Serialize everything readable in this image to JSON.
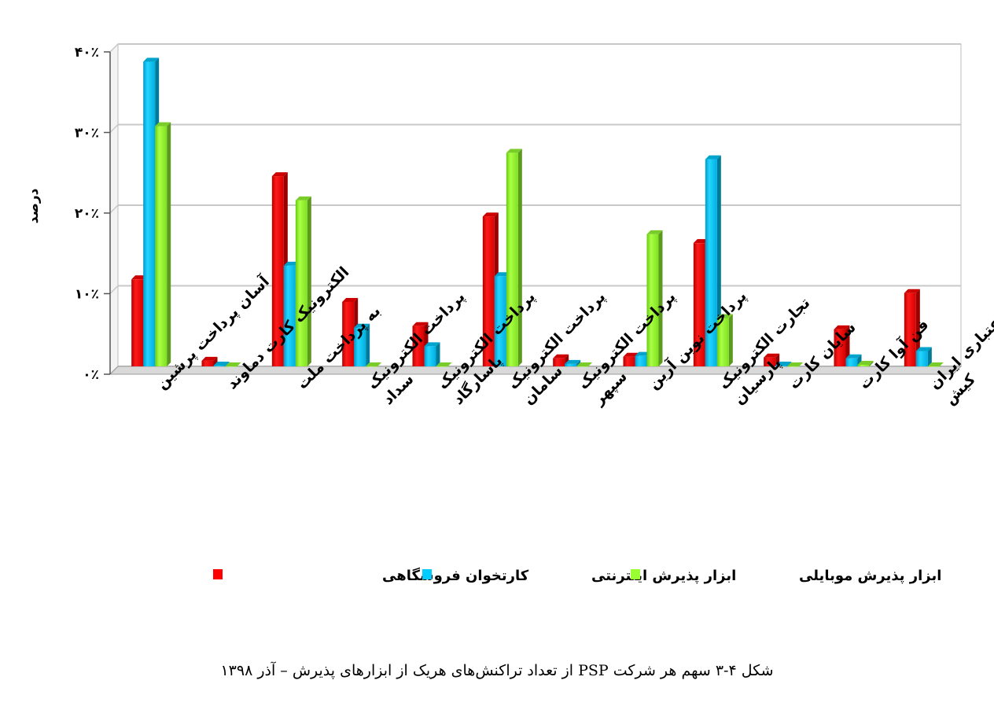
{
  "caption": "شکل ۴-۳ سهم هر شرکت PSP از تعداد تراکنش‌های هریک از ابزارهای پذیرش – آذر ۱۳۹۸",
  "chart_data": {
    "type": "bar",
    "ylabel": "درصد",
    "ylim": [
      0,
      40
    ],
    "grid": true,
    "legend_placement": "bottom",
    "y_ticks": [
      {
        "value": 0,
        "label": "۰٪"
      },
      {
        "value": 10,
        "label": "۱۰٪"
      },
      {
        "value": 20,
        "label": "۲۰٪"
      },
      {
        "value": 30,
        "label": "۳۰٪"
      },
      {
        "value": 40,
        "label": "۴۰٪"
      }
    ],
    "categories": [
      [
        "آسان پرداخت پرشین"
      ],
      [
        "الکترونیک کارت دماوند"
      ],
      [
        "به پرداخت ملت"
      ],
      [
        "پرداخت الکترونیک",
        "سداد"
      ],
      [
        "پرداخت الکترونیک",
        "پاسارگاد"
      ],
      [
        "پرداخت الکترونیک",
        "سامان"
      ],
      [
        "پرداخت الکترونیک",
        "سپهر"
      ],
      [
        "پرداخت نوین آرین"
      ],
      [
        "تجارت الکترونیک",
        "پارسیان"
      ],
      [
        "سایان کارت"
      ],
      [
        "فن آوا کارت"
      ],
      [
        "کارت اعتباری ایران",
        "کیش"
      ]
    ],
    "series": [
      {
        "name": "کارتخوان فروشگاهی",
        "color": "#ff0000",
        "values": [
          10.8,
          0.7,
          23.6,
          8.0,
          5.0,
          18.6,
          1.0,
          1.2,
          15.3,
          1.1,
          4.6,
          9.1
        ]
      },
      {
        "name": "ابزار پذیرش اینترنتی",
        "color": "#00ccff",
        "values": [
          37.8,
          0.1,
          12.5,
          4.8,
          2.5,
          11.2,
          0.3,
          1.3,
          25.7,
          0.1,
          1.0,
          1.9
        ]
      },
      {
        "name": "ابزار پذیرش موبایلی",
        "color": "#99ff33",
        "values": [
          29.8,
          0.0,
          20.6,
          0.0,
          0.0,
          26.5,
          0.0,
          16.4,
          6.0,
          0.0,
          0.2,
          0.0
        ]
      }
    ]
  }
}
